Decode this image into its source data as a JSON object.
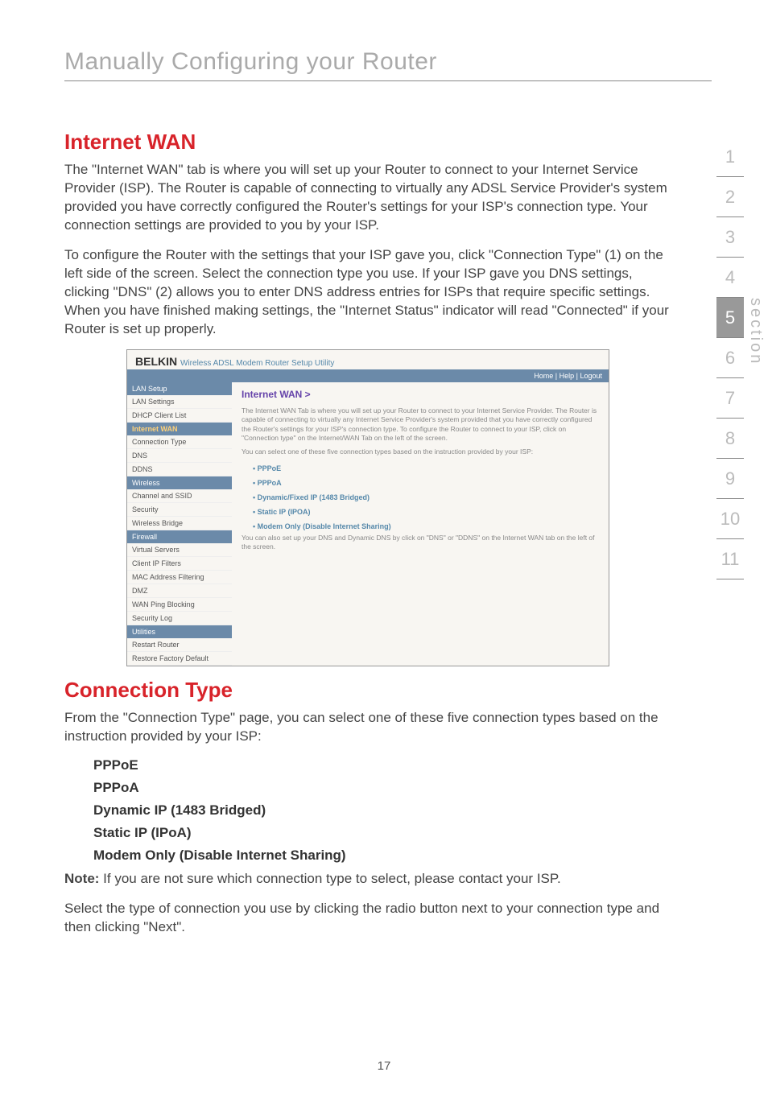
{
  "page": {
    "running_title": "Manually Configuring your Router",
    "page_number": "17"
  },
  "side_nav": {
    "numbers": [
      "1",
      "2",
      "3",
      "4",
      "5",
      "6",
      "7",
      "8",
      "9",
      "10",
      "11"
    ],
    "selected_index": 4,
    "label": "section"
  },
  "internet_wan": {
    "heading": "Internet WAN",
    "para1": "The \"Internet WAN\" tab is where you will set up your Router to connect to your Internet Service Provider (ISP). The Router is capable of connecting to virtually any ADSL Service Provider's system provided you have correctly configured the Router's settings for your ISP's connection type. Your connection settings are provided to you by your ISP.",
    "para2": "To configure the Router with the settings that your ISP gave you, click \"Connection Type\" (1) on the left side of the screen. Select the connection type you use. If your ISP gave you DNS settings, clicking \"DNS\" (2) allows you to enter DNS address entries for ISPs that require specific settings. When you have finished making settings, the \"Internet Status\" indicator will read \"Connected\" if your Router is set up properly."
  },
  "screenshot": {
    "brand": "BELKIN",
    "brand_sub": "Wireless ADSL Modem Router Setup Utility",
    "topbar": "Home | Help | Logout",
    "nav_groups": [
      {
        "header": "LAN Setup",
        "selected": false,
        "items": [
          "LAN Settings",
          "DHCP Client List"
        ]
      },
      {
        "header": "Internet WAN",
        "selected": true,
        "items": [
          "Connection Type",
          "DNS",
          "DDNS"
        ]
      },
      {
        "header": "Wireless",
        "selected": false,
        "items": [
          "Channel and SSID",
          "Security",
          "Wireless Bridge"
        ]
      },
      {
        "header": "Firewall",
        "selected": false,
        "items": [
          "Virtual Servers",
          "Client IP Filters",
          "MAC Address Filtering",
          "DMZ",
          "WAN Ping Blocking",
          "Security Log"
        ]
      },
      {
        "header": "Utilities",
        "selected": false,
        "items": [
          "Restart Router",
          "Restore Factory Default"
        ]
      }
    ],
    "main_heading": "Internet WAN >",
    "main_desc1": "The Internet WAN Tab is where you will set up your Router to connect to your Internet Service Provider. The Router is capable of connecting to virtually any Internet Service Provider's system provided that you have correctly configured the Router's settings for your ISP's connection type. To configure the Router to connect to your ISP, click on \"Connection type\" on the Internet/WAN Tab on the left of the screen.",
    "main_desc2": "You can select one of these five connection types based on the instruction provided by your ISP:",
    "main_rows": [
      "PPPoE",
      "PPPoA",
      "Dynamic/Fixed IP (1483 Bridged)",
      "Static IP (IPOA)",
      "Modem Only (Disable Internet Sharing)"
    ],
    "main_foot": "You can also set up your DNS and Dynamic DNS by click on \"DNS\" or \"DDNS\" on the Internet WAN tab on the left of the screen."
  },
  "connection_type": {
    "heading": "Connection Type",
    "intro": "From the \"Connection Type\" page, you can select one of these five connection types based on the instruction provided by your ISP:",
    "items": [
      "PPPoE",
      "PPPoA",
      "Dynamic IP (1483 Bridged)",
      "Static IP (IPoA)",
      "Modem Only (Disable Internet Sharing)"
    ],
    "note_label": "Note:",
    "note_body": " If you are not sure which connection type to select, please contact your ISP.",
    "closing": "Select the type of connection you use by clicking the radio button next to your connection type and then clicking \"Next\"."
  }
}
